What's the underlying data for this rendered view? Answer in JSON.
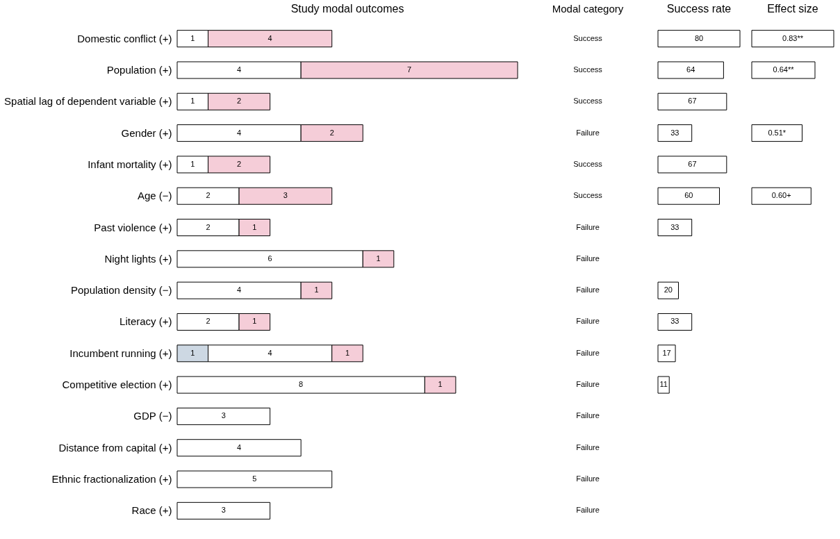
{
  "chart_data": [
    {
      "type": "bar",
      "title": "Study modal outcomes",
      "orientation": "horizontal",
      "stacked": true,
      "data_labels": true,
      "categories": [
        "Domestic conflict (+)",
        "Population (+)",
        "Spatial lag of dependent variable (+)",
        "Gender (+)",
        "Infant mortality (+)",
        "Age (−)",
        "Past violence (+)",
        "Night lights (+)",
        "Population density (−)",
        "Literacy (+)",
        "Incumbent running (+)",
        "Competitive election (+)",
        "GDP (−)",
        "Distance from capital (+)",
        "Ethnic fractionalization (+)",
        "Race (+)"
      ],
      "series": [
        {
          "color": "#cdd8e3",
          "values": [
            null,
            null,
            null,
            null,
            null,
            null,
            null,
            null,
            null,
            null,
            1,
            null,
            null,
            null,
            null,
            null
          ]
        },
        {
          "color": "#ffffff",
          "values": [
            1,
            4,
            1,
            4,
            1,
            2,
            2,
            6,
            4,
            2,
            4,
            8,
            3,
            4,
            5,
            3
          ]
        },
        {
          "color": "#f5cdd8",
          "values": [
            4,
            7,
            2,
            2,
            2,
            3,
            1,
            1,
            1,
            1,
            1,
            1,
            null,
            null,
            null,
            null
          ]
        }
      ]
    },
    {
      "type": "bar",
      "title": "Success rate",
      "ylabel": "Modal category",
      "orientation": "horizontal",
      "data_labels": true,
      "color": "#ffffff",
      "categories": [
        "Success",
        "Success",
        "Success",
        "Failure",
        "Success",
        "Success",
        "Failure",
        "Failure",
        "Failure",
        "Failure",
        "Failure",
        "Failure",
        "Failure",
        "Failure",
        "Failure",
        "Failure"
      ],
      "values": [
        80,
        64,
        67,
        33,
        67,
        60,
        33,
        null,
        20,
        33,
        17,
        11,
        null,
        null,
        null,
        null
      ]
    },
    {
      "type": "bar",
      "title": "Effect size",
      "orientation": "horizontal",
      "color": "#ffffff",
      "categories": [
        null,
        null,
        null,
        null,
        null,
        null,
        null,
        null,
        null,
        null,
        null,
        null,
        null,
        null,
        null,
        null
      ],
      "values": [
        0.83,
        0.64,
        null,
        0.51,
        null,
        0.6,
        null,
        null,
        null,
        null,
        null,
        null,
        null,
        null,
        null,
        null
      ],
      "value_labels": [
        "0.83**",
        "0.64**",
        null,
        "0.51*",
        null,
        "0.60+",
        null,
        null,
        null,
        null,
        null,
        null,
        null,
        null,
        null,
        null
      ]
    }
  ]
}
